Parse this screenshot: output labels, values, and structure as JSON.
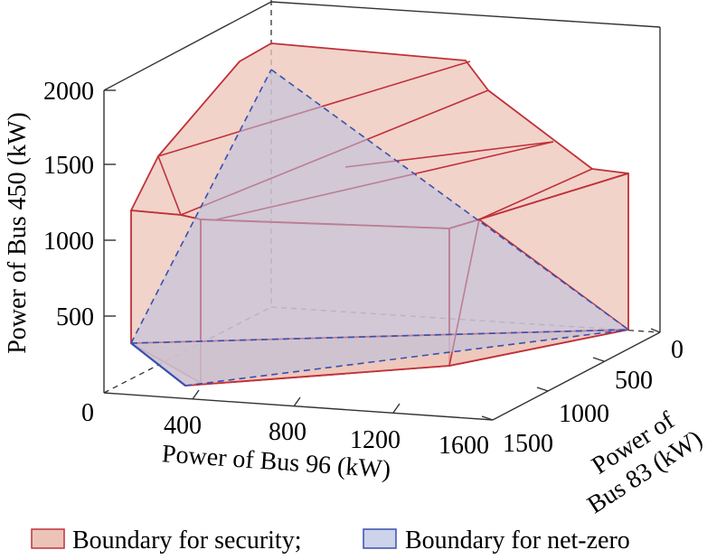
{
  "chart_data": {
    "type": "3d-polytope",
    "title": "",
    "xlabel": "Power of Bus 96 (kW)",
    "ylabel_lines": [
      "Power of",
      "Bus 83 (kW)"
    ],
    "zlabel": "Power of Bus 450 (kW)",
    "xlim": [
      0,
      1600
    ],
    "ylim": [
      0,
      1500
    ],
    "zlim": [
      0,
      2000
    ],
    "x_ticks": [
      "0",
      "400",
      "800",
      "1200",
      "1600"
    ],
    "y_ticks": [
      "0",
      "500",
      "1000",
      "1500"
    ],
    "z_ticks": [
      "500",
      "1000",
      "1500",
      "2000"
    ],
    "series": [
      {
        "name": "Boundary for security;",
        "fill_color": "#ecc4b7",
        "edge_color": "#c0303a"
      },
      {
        "name": "Boundary for net-zero",
        "fill_color": "#ccd3ea",
        "edge_color": "#3850b0"
      }
    ],
    "legend_position": "bottom",
    "grid": false
  }
}
